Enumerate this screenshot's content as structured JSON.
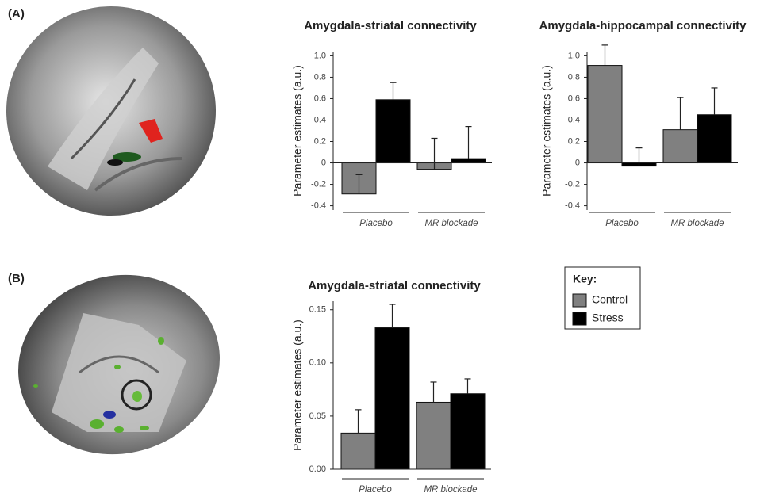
{
  "panels": [
    "(A)",
    "(B)"
  ],
  "chart_data": [
    {
      "type": "bar",
      "title": "Amygdala-striatal connectivity",
      "y_label": "Parameter estimates (a.u.)",
      "categories": [
        "Placebo",
        "MR blockade"
      ],
      "series": [
        {
          "color": "#808080",
          "values": [
            -0.29,
            -0.06
          ],
          "errors": [
            0.18,
            0.29
          ]
        },
        {
          "color": "#000000",
          "values": [
            0.59,
            0.04
          ],
          "errors": [
            0.16,
            0.3
          ]
        }
      ],
      "ylim": [
        -0.44,
        1.04
      ],
      "yticks": [
        -0.4,
        -0.2,
        0,
        0.2,
        0.4,
        0.6,
        0.8,
        {
          "value": 1,
          "label": "1.0"
        }
      ]
    },
    {
      "type": "bar",
      "title": "Amygdala-hippocampal connectivity",
      "y_label": "Parameter estimates (a.u.)",
      "categories": [
        "Placebo",
        "MR blockade"
      ],
      "series": [
        {
          "color": "#808080",
          "values": [
            0.91,
            0.31
          ],
          "errors": [
            0.19,
            0.3
          ]
        },
        {
          "color": "#000000",
          "values": [
            -0.03,
            0.45
          ],
          "errors": [
            0.17,
            0.25
          ]
        }
      ],
      "ylim": [
        -0.44,
        1.04
      ],
      "yticks": [
        -0.4,
        -0.2,
        0,
        0.2,
        0.4,
        0.6,
        0.8,
        {
          "value": 1,
          "label": "1.0"
        }
      ]
    },
    {
      "type": "bar",
      "title": "Amygdala-striatal connectivity",
      "y_label": "Parameter estimates (a.u.)",
      "categories": [
        "Placebo",
        "MR blockade"
      ],
      "legend_title": "Key:",
      "series": [
        {
          "name": "Control",
          "color": "#808080",
          "values": [
            0.034,
            0.063
          ],
          "errors": [
            0.022,
            0.019
          ]
        },
        {
          "name": "Stress",
          "color": "#000000",
          "values": [
            0.133,
            0.071
          ],
          "errors": [
            0.022,
            0.014
          ]
        }
      ],
      "ylim": [
        0,
        0.158
      ],
      "yticks": [
        {
          "value": 0,
          "label": "0.00"
        },
        {
          "value": 0.05,
          "label": "0.05"
        },
        {
          "value": 0.1,
          "label": "0.10"
        },
        {
          "value": 0.15,
          "label": "0.15"
        }
      ]
    }
  ]
}
